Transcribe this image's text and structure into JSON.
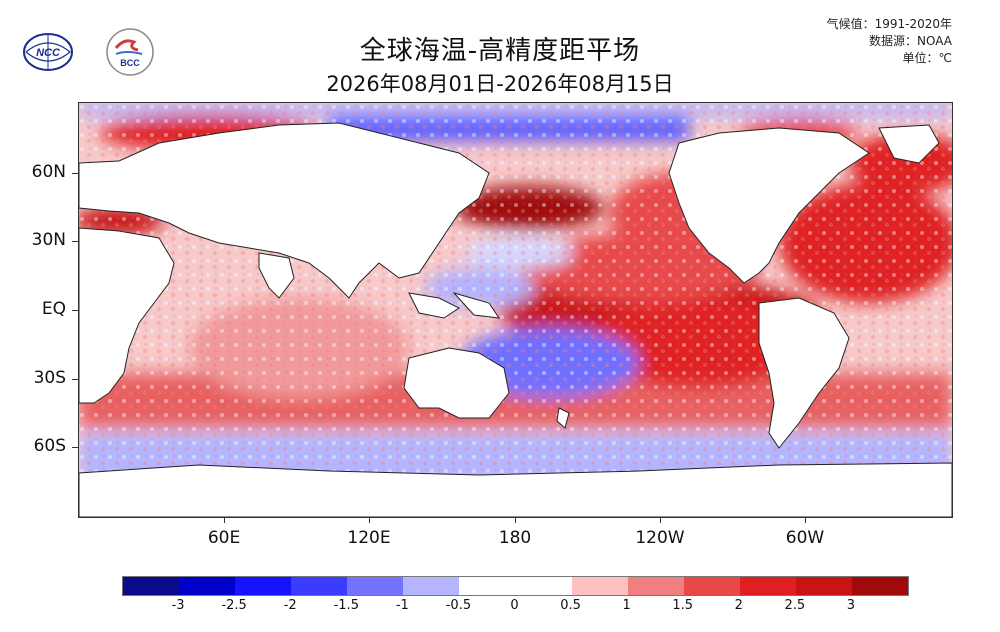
{
  "header": {
    "title": "全球海温-高精度距平场",
    "subtitle": "2026年08月01日-2026年08月15日",
    "climatology": "气候值：1991-2020年",
    "source": "数据源：NOAA",
    "unit": "单位：℃"
  },
  "logos": {
    "left_text": "NCC",
    "right_text": "BCC"
  },
  "axes": {
    "lat_labels": [
      "60N",
      "30N",
      "EQ",
      "30S",
      "60S"
    ],
    "lon_labels": [
      "60E",
      "120E",
      "180",
      "120W",
      "60W"
    ]
  },
  "legend": {
    "colors": [
      "#0a0a8c",
      "#0000c8",
      "#1414ff",
      "#3c3cff",
      "#7373ff",
      "#b4b4ff",
      "#ffffff",
      "#ffc0c0",
      "#f08080",
      "#e84848",
      "#e02020",
      "#c81414",
      "#a00a0a"
    ],
    "labels": [
      "-3",
      "-2.5",
      "-2",
      "-1.5",
      "-1",
      "-0.5",
      "0",
      "0.5",
      "1",
      "1.5",
      "2",
      "2.5",
      "3"
    ]
  }
}
